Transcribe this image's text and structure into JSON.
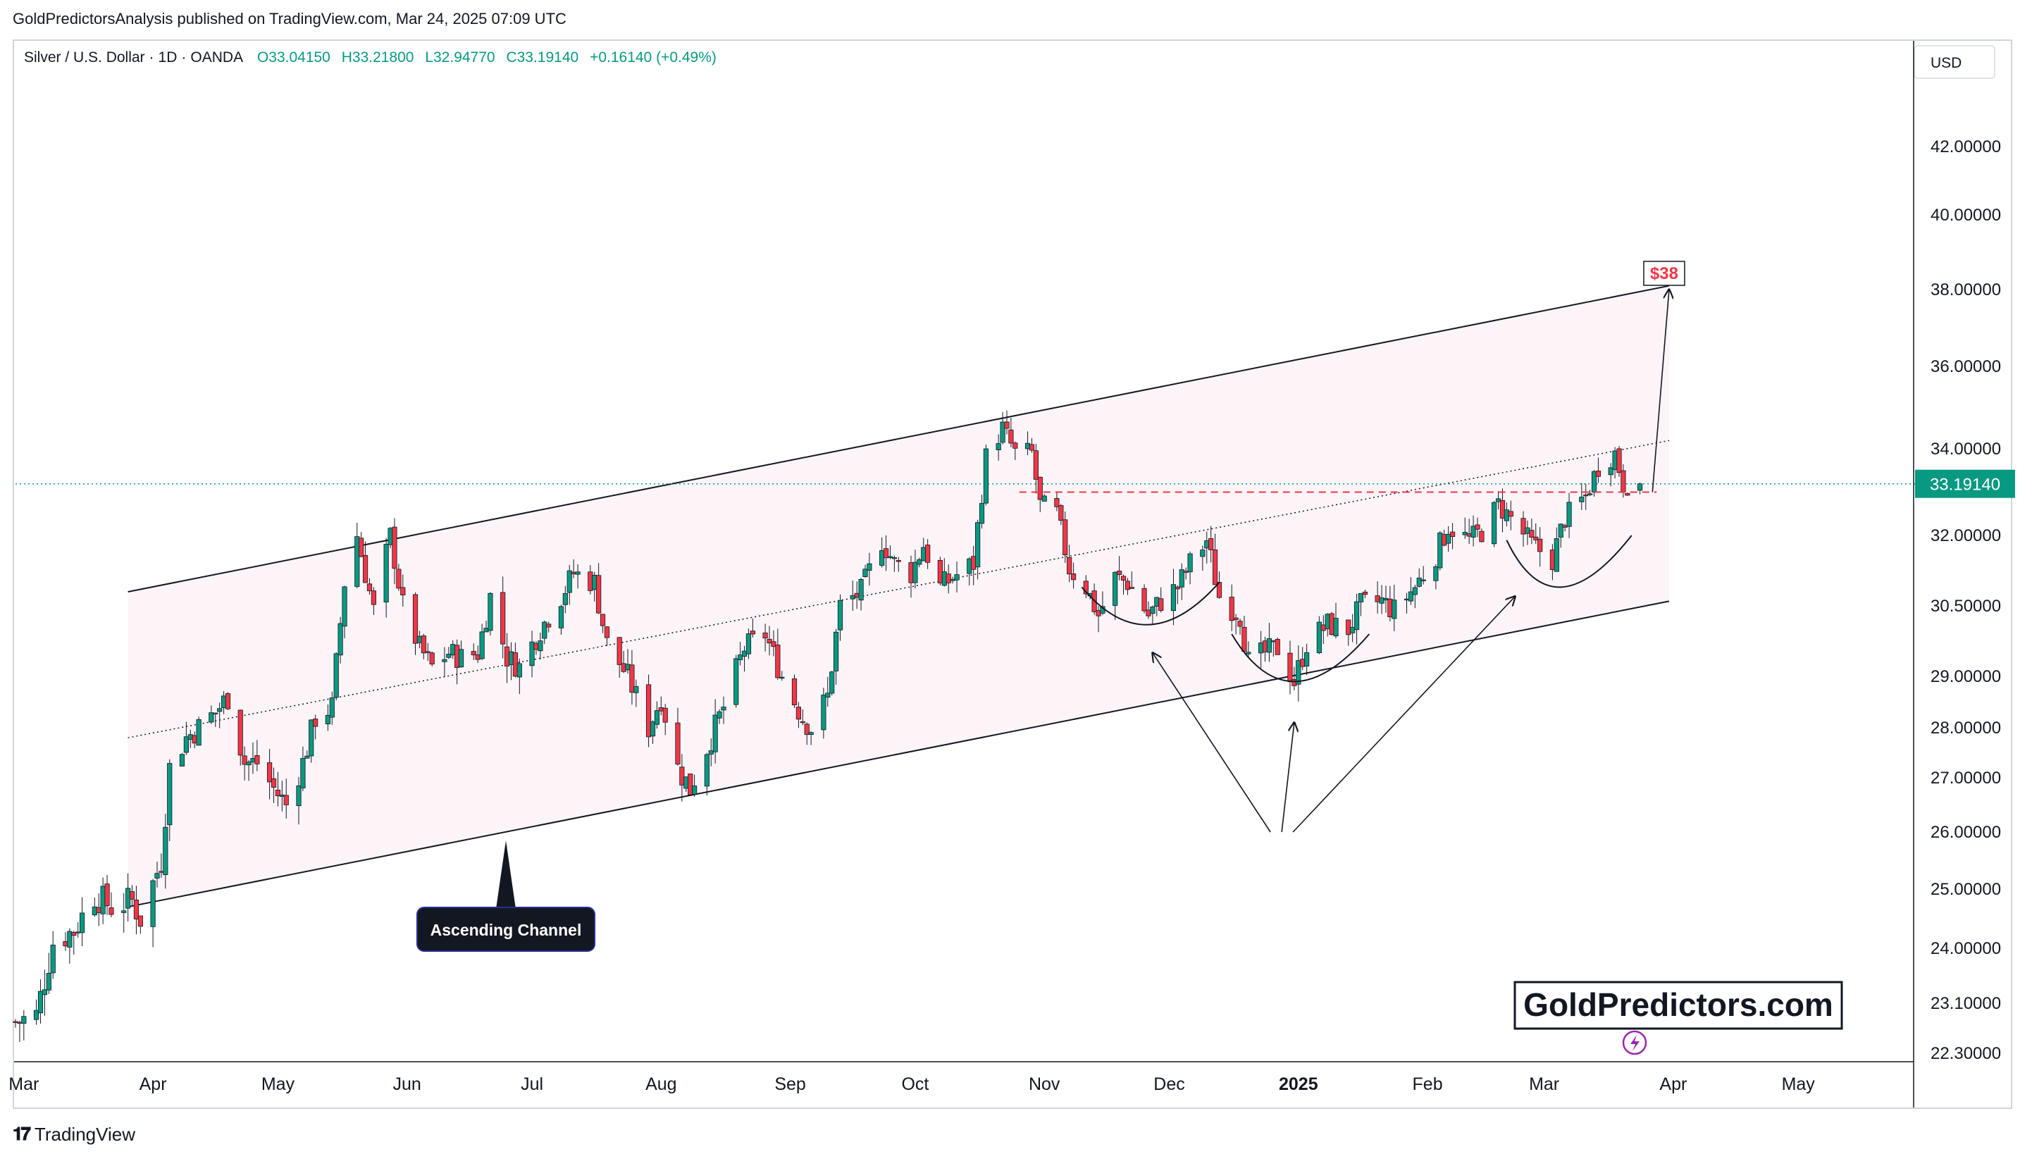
{
  "header": {
    "publisher_line": "GoldPredictorsAnalysis published on TradingView.com, Mar 24, 2025 07:09 UTC"
  },
  "legend": {
    "symbol": "Silver / U.S. Dollar",
    "interval": "1D",
    "source": "OANDA",
    "open": "O33.04150",
    "high": "H33.21800",
    "low": "L32.94770",
    "close": "C33.19140",
    "change": "+0.16140 (+0.49%)"
  },
  "price_axis": {
    "currency": "USD",
    "current_price_label": "33.19140"
  },
  "footer": {
    "brand": "TradingView"
  },
  "colors": {
    "up": "#089981",
    "down": "#f23645",
    "channel_fill": "#fdf4f8",
    "price_line": "#089981",
    "resistance_dashed": "#f23645",
    "target": "#f23645"
  },
  "chart_data": {
    "type": "candlestick",
    "instrument": "Silver / U.S. Dollar",
    "ylim": [
      22.3,
      42.0
    ],
    "y_ticks": [
      "42.00000",
      "40.00000",
      "38.00000",
      "36.00000",
      "34.00000",
      "32.00000",
      "30.50000",
      "29.00000",
      "28.00000",
      "27.00000",
      "26.00000",
      "25.00000",
      "24.00000",
      "23.10000",
      "22.30000"
    ],
    "x_range": [
      "2024-02-28",
      "2025-05-26"
    ],
    "x_ticks": [
      {
        "label": "Mar",
        "date": "2024-03-01"
      },
      {
        "label": "Apr",
        "date": "2024-04-01"
      },
      {
        "label": "May",
        "date": "2024-05-01"
      },
      {
        "label": "Jun",
        "date": "2024-06-01"
      },
      {
        "label": "Jul",
        "date": "2024-07-01"
      },
      {
        "label": "Aug",
        "date": "2024-08-01"
      },
      {
        "label": "Sep",
        "date": "2024-09-01"
      },
      {
        "label": "Oct",
        "date": "2024-10-01"
      },
      {
        "label": "Nov",
        "date": "2024-11-01"
      },
      {
        "label": "Dec",
        "date": "2024-12-01"
      },
      {
        "label": "2025",
        "date": "2025-01-01"
      },
      {
        "label": "Feb",
        "date": "2025-02-01"
      },
      {
        "label": "Mar",
        "date": "2025-03-01"
      },
      {
        "label": "Apr",
        "date": "2025-04-01"
      },
      {
        "label": "May",
        "date": "2025-05-01"
      }
    ],
    "close_path": [
      [
        "2024-02-28",
        22.8
      ],
      [
        "2024-03-04",
        22.9
      ],
      [
        "2024-03-08",
        24.1
      ],
      [
        "2024-03-13",
        24.3
      ],
      [
        "2024-03-18",
        24.9
      ],
      [
        "2024-03-22",
        24.7
      ],
      [
        "2024-03-27",
        24.8
      ],
      [
        "2024-03-29",
        24.5
      ],
      [
        "2024-04-03",
        25.5
      ],
      [
        "2024-04-05",
        27.2
      ],
      [
        "2024-04-09",
        27.8
      ],
      [
        "2024-04-12",
        28.0
      ],
      [
        "2024-04-16",
        28.3
      ],
      [
        "2024-04-19",
        28.6
      ],
      [
        "2024-04-23",
        27.3
      ],
      [
        "2024-04-26",
        27.3
      ],
      [
        "2024-04-30",
        26.8
      ],
      [
        "2024-05-03",
        26.5
      ],
      [
        "2024-05-07",
        27.3
      ],
      [
        "2024-05-10",
        28.2
      ],
      [
        "2024-05-14",
        28.4
      ],
      [
        "2024-05-17",
        31.0
      ],
      [
        "2024-05-20",
        32.0
      ],
      [
        "2024-05-22",
        31.2
      ],
      [
        "2024-05-24",
        30.4
      ],
      [
        "2024-05-28",
        32.0
      ],
      [
        "2024-05-31",
        30.5
      ],
      [
        "2024-06-04",
        29.6
      ],
      [
        "2024-06-07",
        29.2
      ],
      [
        "2024-06-11",
        29.5
      ],
      [
        "2024-06-14",
        29.4
      ],
      [
        "2024-06-18",
        29.5
      ],
      [
        "2024-06-21",
        30.7
      ],
      [
        "2024-06-25",
        29.4
      ],
      [
        "2024-06-28",
        29.2
      ],
      [
        "2024-07-03",
        30.0
      ],
      [
        "2024-07-08",
        30.7
      ],
      [
        "2024-07-11",
        31.2
      ],
      [
        "2024-07-16",
        31.0
      ],
      [
        "2024-07-19",
        29.7
      ],
      [
        "2024-07-24",
        29.0
      ],
      [
        "2024-07-29",
        28.0
      ],
      [
        "2024-08-01",
        28.6
      ],
      [
        "2024-08-05",
        27.2
      ],
      [
        "2024-08-08",
        26.8
      ],
      [
        "2024-08-13",
        27.8
      ],
      [
        "2024-08-16",
        28.4
      ],
      [
        "2024-08-21",
        29.6
      ],
      [
        "2024-08-26",
        29.9
      ],
      [
        "2024-08-30",
        29.0
      ],
      [
        "2024-09-04",
        28.2
      ],
      [
        "2024-09-06",
        28.0
      ],
      [
        "2024-09-10",
        28.6
      ],
      [
        "2024-09-13",
        30.5
      ],
      [
        "2024-09-18",
        30.8
      ],
      [
        "2024-09-23",
        31.9
      ],
      [
        "2024-09-26",
        31.4
      ],
      [
        "2024-09-30",
        31.2
      ],
      [
        "2024-10-03",
        31.8
      ],
      [
        "2024-10-07",
        30.9
      ],
      [
        "2024-10-10",
        31.1
      ],
      [
        "2024-10-15",
        31.4
      ],
      [
        "2024-10-18",
        33.8
      ],
      [
        "2024-10-22",
        34.5
      ],
      [
        "2024-10-25",
        33.9
      ],
      [
        "2024-10-29",
        33.9
      ],
      [
        "2024-10-31",
        32.7
      ],
      [
        "2024-11-04",
        32.5
      ],
      [
        "2024-11-07",
        31.3
      ],
      [
        "2024-11-11",
        30.9
      ],
      [
        "2024-11-14",
        30.3
      ],
      [
        "2024-11-18",
        31.1
      ],
      [
        "2024-11-21",
        31.0
      ],
      [
        "2024-11-26",
        30.3
      ],
      [
        "2024-11-29",
        30.6
      ],
      [
        "2024-12-03",
        30.9
      ],
      [
        "2024-12-06",
        31.4
      ],
      [
        "2024-12-10",
        31.9
      ],
      [
        "2024-12-13",
        30.7
      ],
      [
        "2024-12-18",
        30.3
      ],
      [
        "2024-12-20",
        29.3
      ],
      [
        "2024-12-24",
        29.5
      ],
      [
        "2024-12-27",
        29.6
      ],
      [
        "2024-12-31",
        28.9
      ],
      [
        "2025-01-03",
        29.7
      ],
      [
        "2025-01-08",
        30.1
      ],
      [
        "2025-01-13",
        30.0
      ],
      [
        "2025-01-16",
        30.5
      ],
      [
        "2025-01-21",
        30.6
      ],
      [
        "2025-01-24",
        30.4
      ],
      [
        "2025-01-29",
        30.9
      ],
      [
        "2025-02-03",
        31.6
      ],
      [
        "2025-02-06",
        32.2
      ],
      [
        "2025-02-11",
        31.9
      ],
      [
        "2025-02-14",
        32.1
      ],
      [
        "2025-02-18",
        32.7
      ],
      [
        "2025-02-21",
        32.4
      ],
      [
        "2025-02-26",
        31.8
      ],
      [
        "2025-03-03",
        31.5
      ],
      [
        "2025-03-06",
        32.4
      ],
      [
        "2025-03-11",
        32.9
      ],
      [
        "2025-03-14",
        33.6
      ],
      [
        "2025-03-18",
        33.9
      ],
      [
        "2025-03-20",
        33.2
      ],
      [
        "2025-03-24",
        33.19
      ]
    ],
    "annotations": {
      "channel_upper": {
        "start": [
          "2024-03-26",
          30.8
        ],
        "end": [
          "2025-03-31",
          38.1
        ]
      },
      "channel_lower": {
        "start": [
          "2024-03-26",
          24.7
        ],
        "end": [
          "2025-03-31",
          30.6
        ]
      },
      "channel_mid_dotted": {
        "start": [
          "2024-03-26",
          27.8
        ],
        "end": [
          "2025-03-31",
          34.2
        ]
      },
      "resistance_dashed": {
        "price": 33.0,
        "start": "2024-10-26",
        "end": "2025-03-28"
      },
      "current_price": 33.1914,
      "projection_arrow": {
        "start": [
          "2025-03-27",
          33.0
        ],
        "end": [
          "2025-03-31",
          38.0
        ]
      },
      "target_label": "$38",
      "channel_label": "Ascending Channel",
      "watermark": "GoldPredictors.com",
      "arcs": [
        {
          "start": [
            "2024-11-10",
            30.9
          ],
          "bottom": [
            "2024-11-26",
            30.1
          ],
          "end": [
            "2024-12-13",
            31.0
          ]
        },
        {
          "start": [
            "2024-12-16",
            29.9
          ],
          "bottom": [
            "2024-12-31",
            28.9
          ],
          "end": [
            "2025-01-18",
            29.9
          ]
        },
        {
          "start": [
            "2025-02-20",
            31.9
          ],
          "bottom": [
            "2025-03-05",
            30.9
          ],
          "end": [
            "2025-03-22",
            32.0
          ]
        }
      ],
      "pointer_arrows_origin": [
        "2024-12-28",
        26.0
      ],
      "pointer_arrows_tips": [
        [
          "2024-11-27",
          29.5
        ],
        [
          "2024-12-31",
          28.1
        ],
        [
          "2025-02-22",
          30.7
        ]
      ]
    }
  }
}
